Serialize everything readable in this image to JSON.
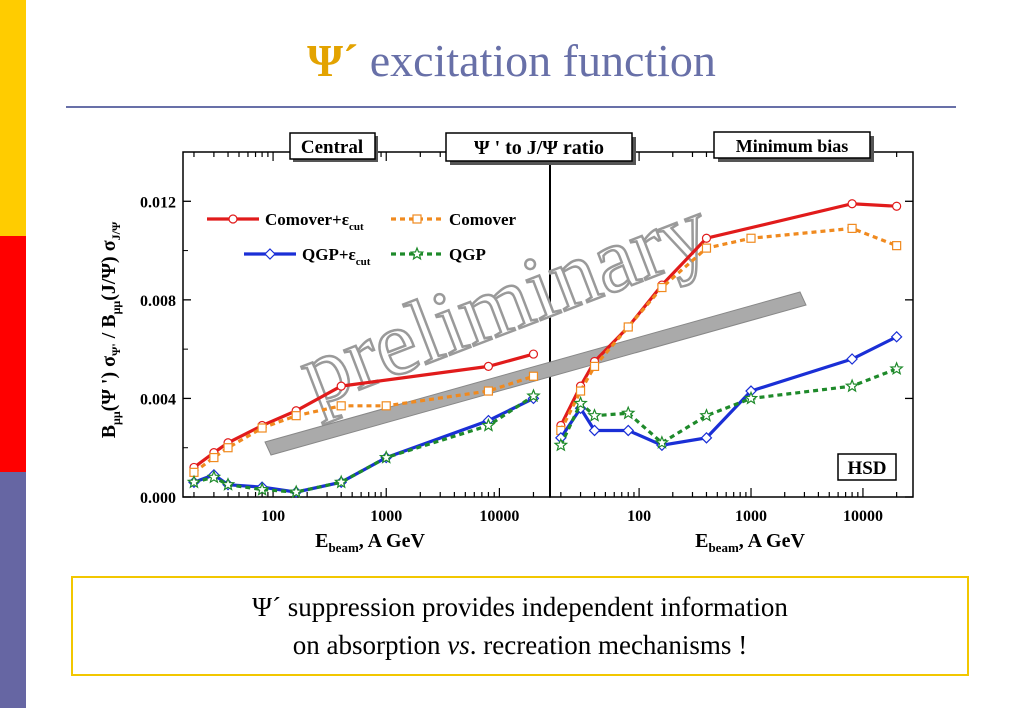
{
  "slide": {
    "title_symbol": "Ψ´",
    "title_text": "excitation function",
    "caption_line1": "Ψ´ suppression provides independent information",
    "caption_line2_pre": "on absorption ",
    "caption_line2_em": "vs",
    "caption_line2_post": ". recreation mechanisms !",
    "watermark": "preliminary",
    "colors": {
      "yellow_strip": "#ffcc00",
      "red_strip": "#ff0000",
      "blue_strip": "#6666a3",
      "title": "#6870a8",
      "title_symbol": "#e3a300",
      "caption_border": "#f2c700"
    }
  },
  "chart_data": {
    "type": "line",
    "x_scale": "log",
    "center_label": "Ψ ' to J/Ψ ratio",
    "ylabel": "B_μμ(Ψ ') σ_Ψ' / B_μμ(J/Ψ) σ_J/Ψ",
    "ylim": [
      0.0,
      0.014
    ],
    "yticks": [
      "0.000",
      "0.004",
      "0.008",
      "0.012"
    ],
    "xlim": [
      16,
      28000
    ],
    "xticks": [
      "100",
      "1000",
      "10000"
    ],
    "legend": [
      {
        "name": "Comover+ε_cut",
        "color": "#e11b1b",
        "style": "solid",
        "marker": "circle"
      },
      {
        "name": "Comover",
        "color": "#f08a1f",
        "style": "dotted",
        "marker": "square"
      },
      {
        "name": "QGP+ε_cut",
        "color": "#1a2fd6",
        "style": "solid",
        "marker": "diamond"
      },
      {
        "name": "QGP",
        "color": "#1e8a2a",
        "style": "dotted",
        "marker": "star"
      }
    ],
    "panels": [
      {
        "label": "Central",
        "xlabel": "E_beam, A GeV",
        "series": [
          {
            "name": "Comover+ε_cut",
            "x": [
              20,
              30,
              40,
              80,
              160,
              400,
              8000,
              20000
            ],
            "y": [
              0.0012,
              0.0018,
              0.0022,
              0.0029,
              0.0035,
              0.0045,
              0.0053,
              0.0058
            ]
          },
          {
            "name": "Comover",
            "x": [
              20,
              30,
              40,
              80,
              160,
              400,
              1000,
              8000,
              20000
            ],
            "y": [
              0.001,
              0.0016,
              0.002,
              0.0028,
              0.0033,
              0.0037,
              0.0037,
              0.0043,
              0.0049
            ]
          },
          {
            "name": "QGP+ε_cut",
            "x": [
              20,
              30,
              40,
              80,
              160,
              400,
              1000,
              8000,
              20000
            ],
            "y": [
              0.0006,
              0.0009,
              0.0005,
              0.0004,
              0.0002,
              0.0006,
              0.0016,
              0.0031,
              0.004
            ]
          },
          {
            "name": "QGP",
            "x": [
              20,
              30,
              40,
              80,
              160,
              400,
              1000,
              8000,
              20000
            ],
            "y": [
              0.0006,
              0.0008,
              0.0005,
              0.0003,
              0.0002,
              0.0006,
              0.0016,
              0.0029,
              0.0041
            ]
          }
        ]
      },
      {
        "label": "Minimum bias",
        "xlabel": "E_beam, A GeV",
        "corner_label": "HSD",
        "series": [
          {
            "name": "Comover+ε_cut",
            "x": [
              20,
              30,
              40,
              80,
              160,
              400,
              8000,
              20000
            ],
            "y": [
              0.0029,
              0.0045,
              0.0055,
              0.0069,
              0.0086,
              0.0105,
              0.0119,
              0.0118
            ]
          },
          {
            "name": "Comover",
            "x": [
              20,
              30,
              40,
              80,
              160,
              400,
              1000,
              8000,
              20000
            ],
            "y": [
              0.0027,
              0.0043,
              0.0053,
              0.0069,
              0.0085,
              0.0101,
              0.0105,
              0.0109,
              0.0102
            ]
          },
          {
            "name": "QGP+ε_cut",
            "x": [
              20,
              30,
              40,
              80,
              160,
              400,
              1000,
              8000,
              20000
            ],
            "y": [
              0.0024,
              0.0036,
              0.0027,
              0.0027,
              0.0021,
              0.0024,
              0.0043,
              0.0056,
              0.0065
            ]
          },
          {
            "name": "QGP",
            "x": [
              20,
              30,
              40,
              80,
              160,
              400,
              1000,
              8000,
              20000
            ],
            "y": [
              0.0021,
              0.0038,
              0.0033,
              0.0034,
              0.0022,
              0.0033,
              0.004,
              0.0045,
              0.0052
            ]
          }
        ]
      }
    ]
  }
}
